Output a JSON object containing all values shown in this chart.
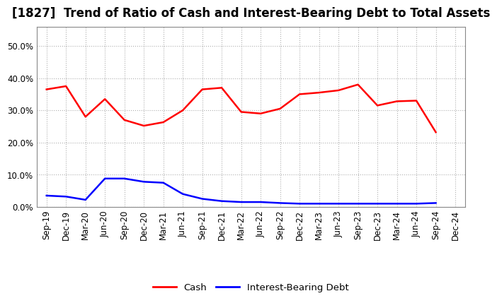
{
  "title": "[1827]  Trend of Ratio of Cash and Interest-Bearing Debt to Total Assets",
  "x_labels": [
    "Sep-19",
    "Dec-19",
    "Mar-20",
    "Jun-20",
    "Sep-20",
    "Dec-20",
    "Mar-21",
    "Jun-21",
    "Sep-21",
    "Dec-21",
    "Mar-22",
    "Jun-22",
    "Sep-22",
    "Dec-22",
    "Mar-23",
    "Jun-23",
    "Sep-23",
    "Dec-23",
    "Mar-24",
    "Jun-24",
    "Sep-24",
    "Dec-24"
  ],
  "cash": [
    0.365,
    0.375,
    0.28,
    0.335,
    0.27,
    0.252,
    0.263,
    0.3,
    0.365,
    0.37,
    0.295,
    0.29,
    0.305,
    0.35,
    0.355,
    0.362,
    0.38,
    0.315,
    0.328,
    0.33,
    0.232,
    null
  ],
  "ibd": [
    0.035,
    0.032,
    0.022,
    0.088,
    0.088,
    0.078,
    0.075,
    0.04,
    0.025,
    0.018,
    0.015,
    0.015,
    0.012,
    0.01,
    0.01,
    0.01,
    0.01,
    0.01,
    0.01,
    0.01,
    0.012,
    null
  ],
  "cash_color": "#ff0000",
  "ibd_color": "#0000ff",
  "background_color": "#ffffff",
  "grid_color": "#b0b0b0",
  "ylim": [
    0.0,
    0.56
  ],
  "yticks": [
    0.0,
    0.1,
    0.2,
    0.3,
    0.4,
    0.5
  ],
  "legend_labels": [
    "Cash",
    "Interest-Bearing Debt"
  ],
  "title_fontsize": 12,
  "axis_fontsize": 8.5,
  "legend_fontsize": 9.5
}
